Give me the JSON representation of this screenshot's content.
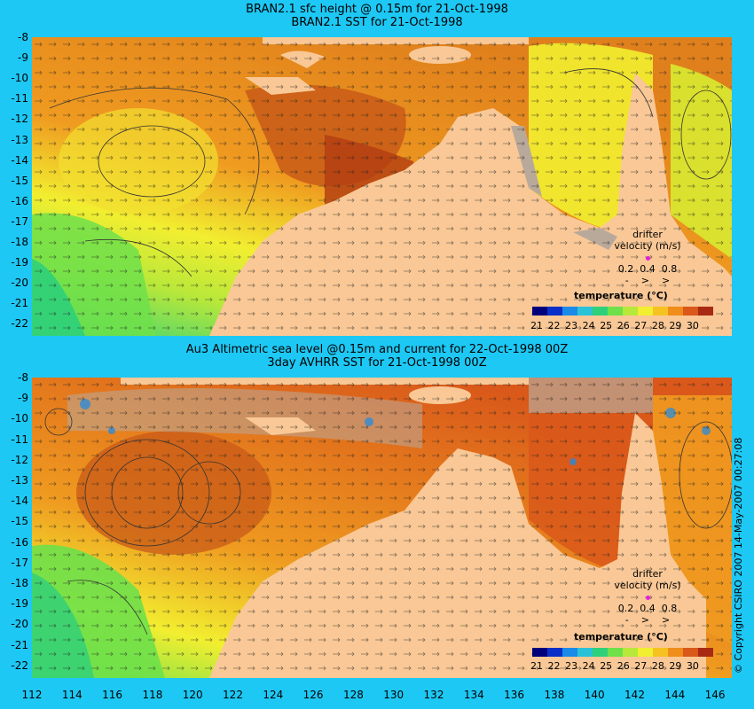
{
  "top": {
    "title1": "BRAN2.1 sfc height @ 0.15m for 21-Oct-1998",
    "title2": "BRAN2.1 SST for 21-Oct-1998"
  },
  "bottom": {
    "title1": "Au3 Altimetric sea level  @0.15m and current for 22-Oct-1998 00Z",
    "title2": "3day AVHRR SST for 21-Oct-1998 00Z"
  },
  "y_ticks": [
    "-8",
    "-9",
    "-10",
    "-11",
    "-12",
    "-13",
    "-14",
    "-15",
    "-16",
    "-17",
    "-18",
    "-19",
    "-20",
    "-21",
    "-22"
  ],
  "x_ticks": [
    "112",
    "114",
    "116",
    "118",
    "120",
    "122",
    "124",
    "126",
    "128",
    "130",
    "132",
    "134",
    "136",
    "138",
    "140",
    "142",
    "144",
    "146"
  ],
  "legend": {
    "title": "temperature (°C)",
    "ticks": [
      "21",
      "22",
      "23",
      "24",
      "25",
      "26",
      "27",
      "28",
      "29",
      "30"
    ],
    "colors": [
      "#00007a",
      "#0a2fc8",
      "#1a8be8",
      "#2bc2d8",
      "#2fd07a",
      "#6ee04a",
      "#b8e83a",
      "#f2ee30",
      "#f6c222",
      "#ef8e1a",
      "#d9581a",
      "#a82a12"
    ]
  },
  "drifter": {
    "label1": "drifter",
    "label2": "velocity (m/s)",
    "speeds": "0.2  0.4  0.8",
    "arrows": "-    >    >"
  },
  "copyright": "© Copyright CSIRO 2007   14-May-2007 00:27:08",
  "colors": {
    "background": "#1ec8f4",
    "land": "#f9c896",
    "missing": "#b9a99a"
  }
}
